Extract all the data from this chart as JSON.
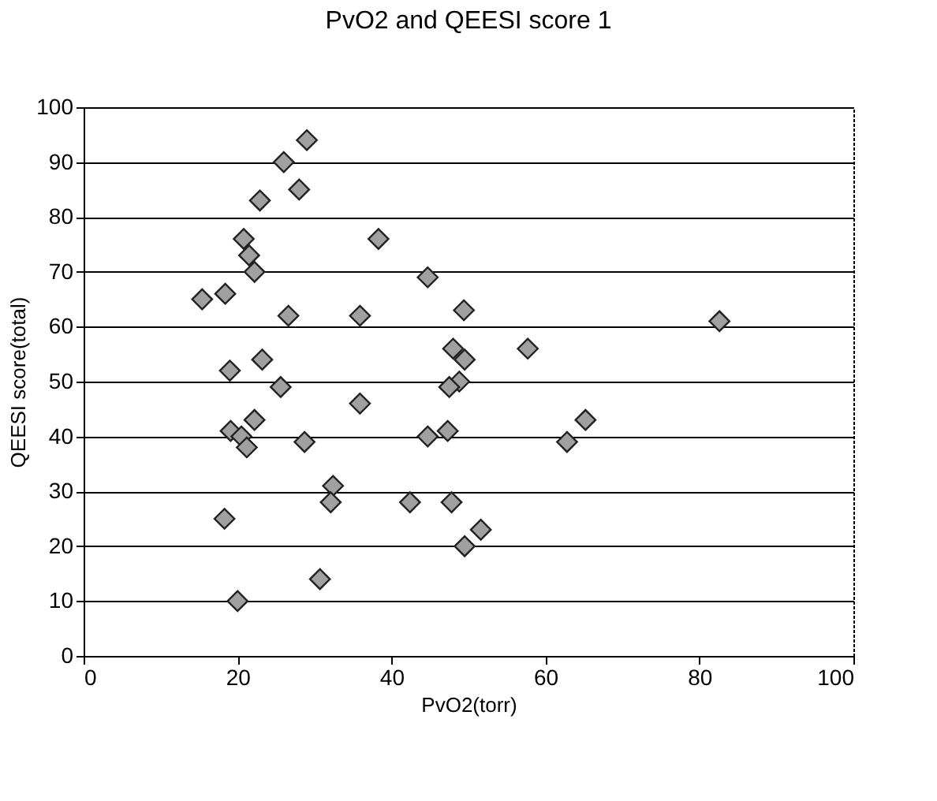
{
  "chart_data": {
    "type": "scatter",
    "title": "PvO2 and QEESI score 1",
    "xlabel": "PvO2(torr)",
    "ylabel": "QEESI score(total)",
    "x": [
      29,
      26,
      28,
      22.9,
      20.8,
      21.5,
      22.2,
      15.4,
      18.4,
      26.6,
      35.9,
      38.3,
      19,
      23.2,
      25.6,
      35.9,
      19.1,
      22.2,
      20.5,
      21.2,
      28.7,
      32.4,
      32.1,
      18.3,
      30.7,
      20,
      44.7,
      49.4,
      82.6,
      48,
      49.5,
      48.8,
      47.5,
      57.7,
      44.7,
      47.3,
      65.2,
      62.8,
      42.4,
      47.8,
      51.6,
      49.5
    ],
    "series": [
      {
        "color": "#a0a0a0",
        "values": [
          94,
          90,
          85,
          83,
          76,
          73,
          70,
          65,
          66,
          62,
          62,
          76,
          52,
          54,
          49,
          46,
          41,
          43,
          40,
          38,
          39,
          31,
          28,
          25,
          14,
          10,
          69,
          63,
          61,
          56,
          54,
          50,
          49,
          56,
          40,
          41,
          43,
          39,
          28,
          28,
          23,
          20
        ]
      }
    ],
    "xlim": [
      0,
      100
    ],
    "ylim": [
      0,
      100
    ],
    "xticks": [
      0,
      20,
      40,
      60,
      80,
      100
    ],
    "yticks": [
      0,
      10,
      20,
      30,
      40,
      50,
      60,
      70,
      80,
      90,
      100
    ],
    "grid": "y",
    "marker": "diamond",
    "legend": false
  }
}
